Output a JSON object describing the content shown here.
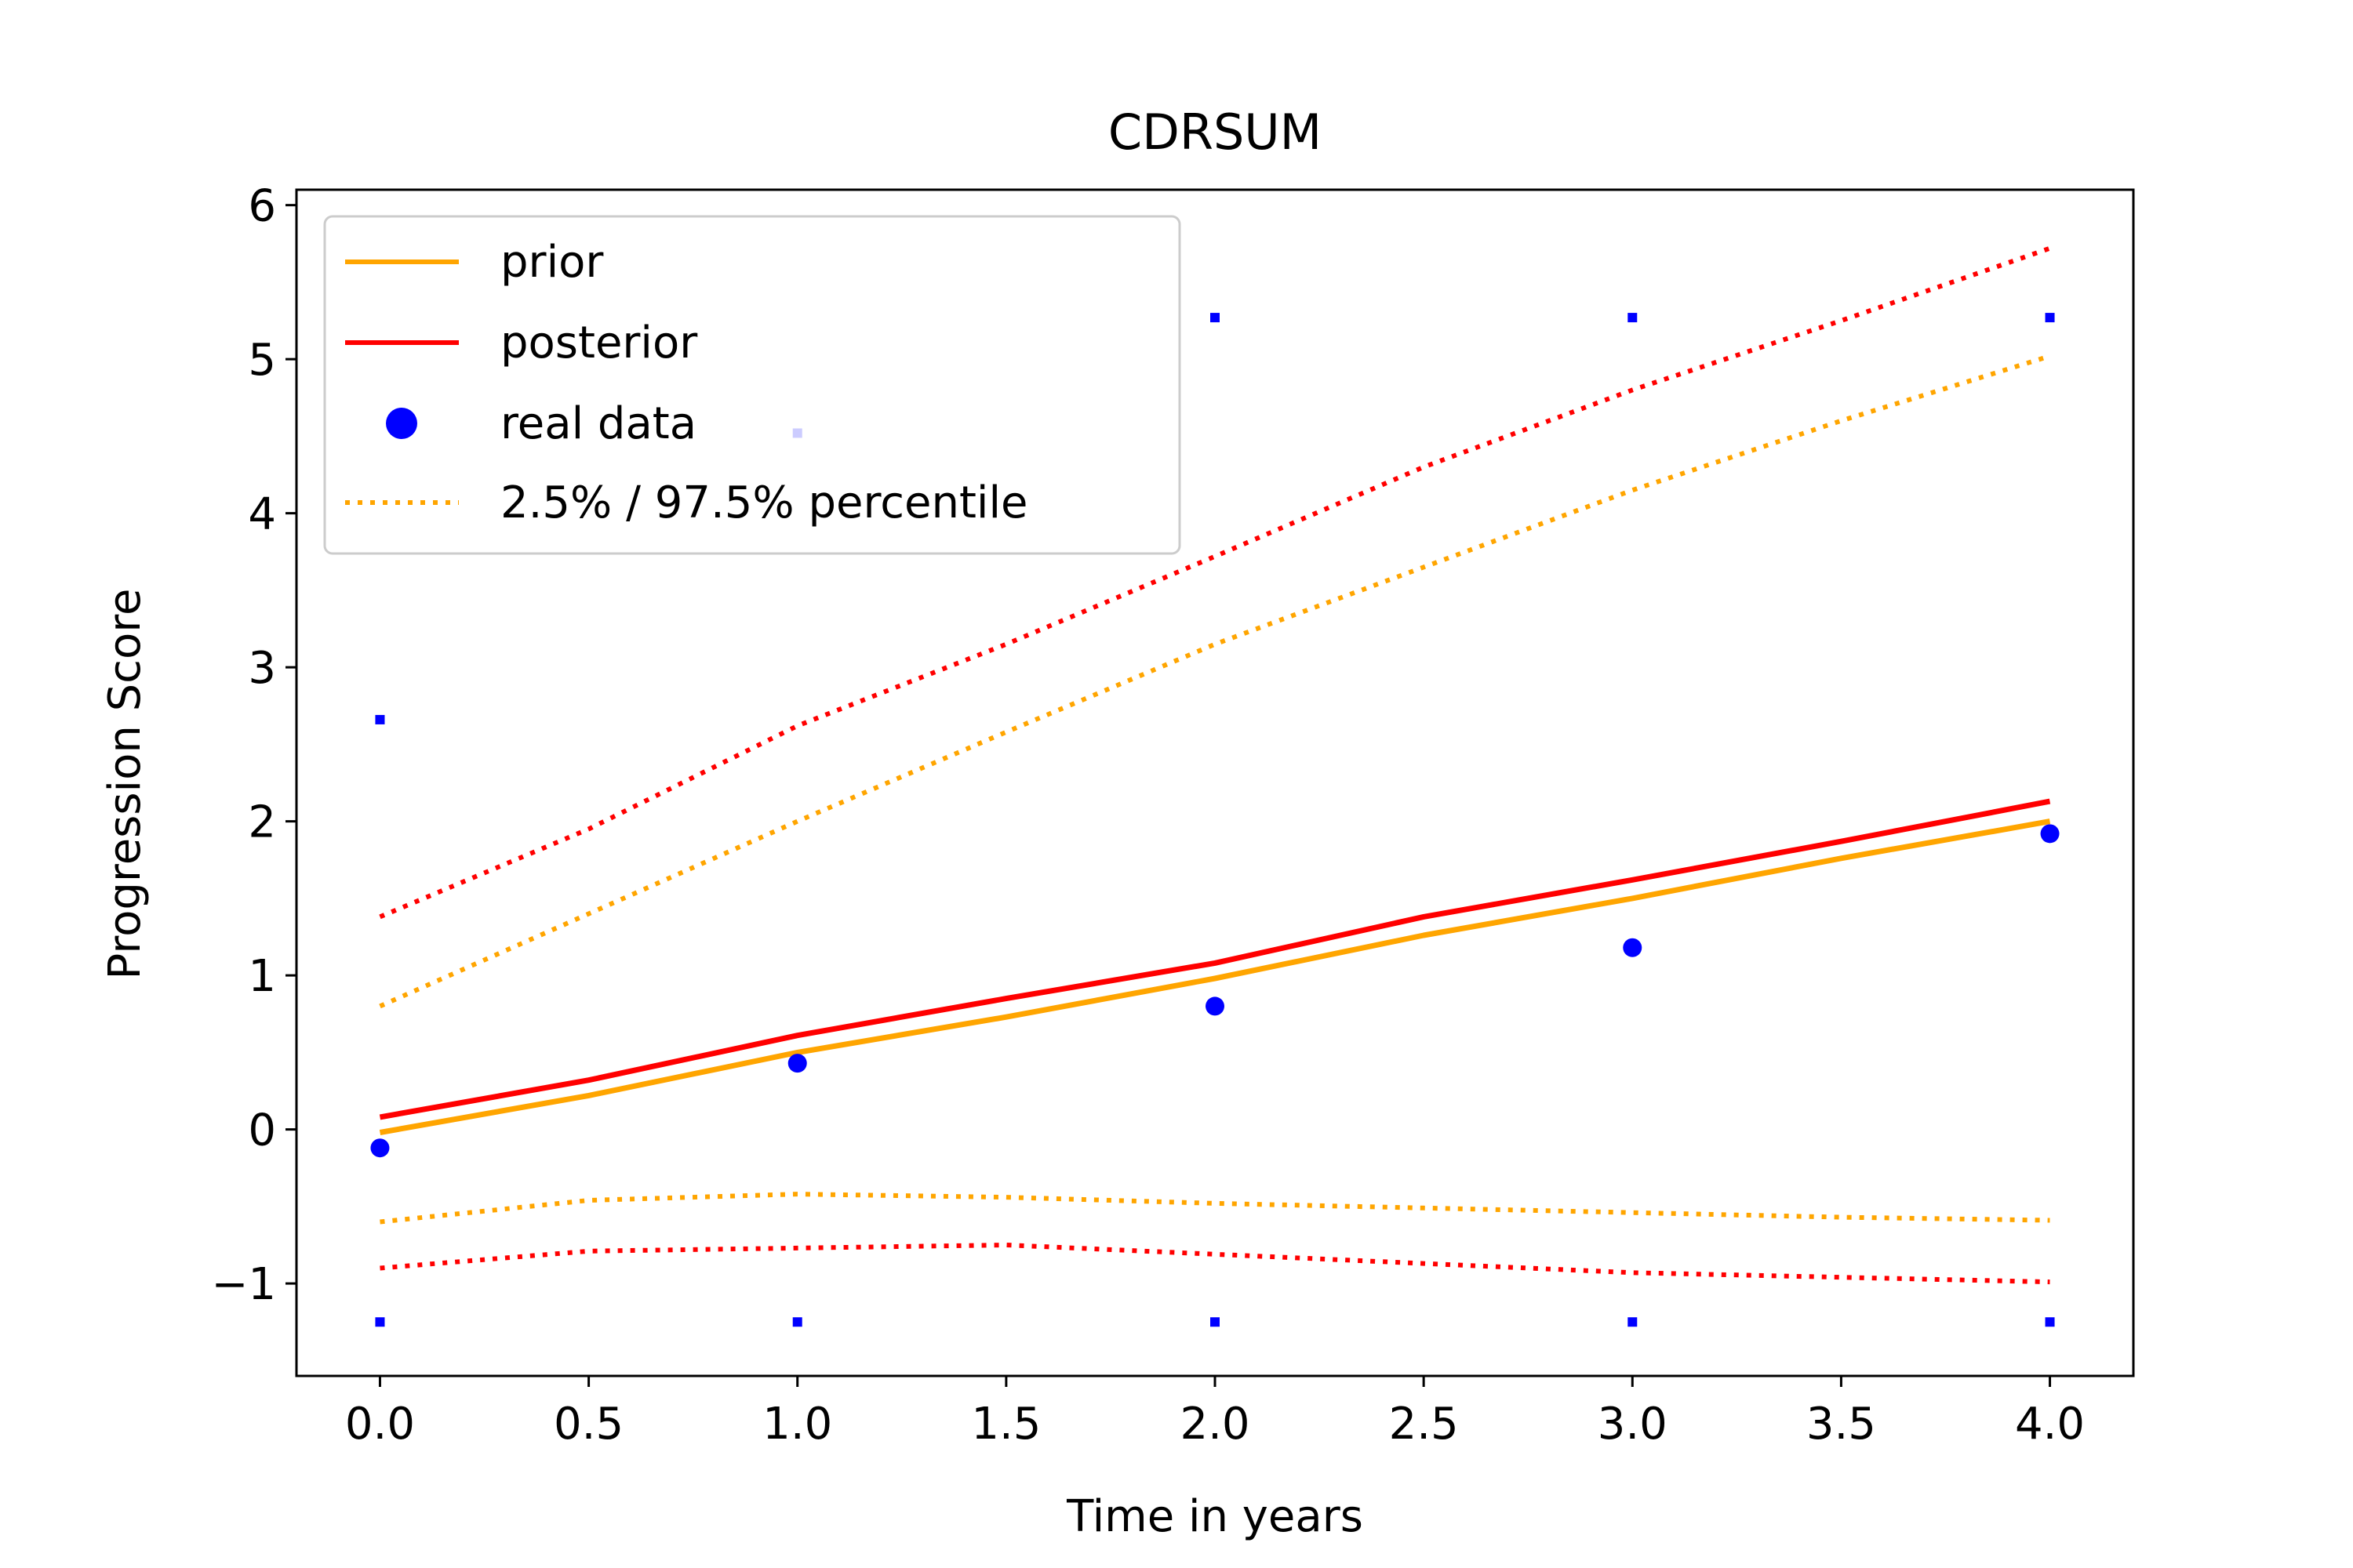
{
  "chart_data": {
    "type": "line",
    "title": "CDRSUM",
    "xlabel": "Time in years",
    "ylabel": "Progression Score",
    "xlim": [
      -0.2,
      4.2
    ],
    "ylim": [
      -1.6,
      6.1
    ],
    "xticks": [
      0.0,
      0.5,
      1.0,
      1.5,
      2.0,
      2.5,
      3.0,
      3.5,
      4.0
    ],
    "xtick_labels": [
      "0.0",
      "0.5",
      "1.0",
      "1.5",
      "2.0",
      "2.5",
      "3.0",
      "3.5",
      "4.0"
    ],
    "yticks": [
      -1,
      0,
      1,
      2,
      3,
      4,
      5,
      6
    ],
    "ytick_labels": [
      "−1",
      "0",
      "1",
      "2",
      "3",
      "4",
      "5",
      "6"
    ],
    "grid": false,
    "legend_position": "top-left",
    "legend": [
      "prior",
      "posterior",
      "real data",
      "2.5% / 97.5% percentile"
    ],
    "series": [
      {
        "name": "prior",
        "style": "solid",
        "color": "#FFA500",
        "x": [
          0,
          0.5,
          1.0,
          1.5,
          2.0,
          2.5,
          3.0,
          3.5,
          4.0
        ],
        "y": [
          -0.02,
          0.22,
          0.5,
          0.73,
          0.98,
          1.26,
          1.5,
          1.76,
          2.0
        ]
      },
      {
        "name": "posterior",
        "style": "solid",
        "color": "#FF0000",
        "x": [
          0,
          0.5,
          1.0,
          1.5,
          2.0,
          2.5,
          3.0,
          3.5,
          4.0
        ],
        "y": [
          0.08,
          0.32,
          0.61,
          0.85,
          1.08,
          1.38,
          1.62,
          1.87,
          2.13
        ]
      },
      {
        "name": "real data",
        "style": "marker",
        "color": "#0000FF",
        "x": [
          0,
          1,
          2,
          3,
          4
        ],
        "y": [
          -0.12,
          0.43,
          0.8,
          1.18,
          1.92
        ]
      },
      {
        "name": "2.5% / 97.5% percentile",
        "style": "dotted",
        "color": "#FFA500",
        "x": [
          0,
          0.5,
          1.0,
          1.5,
          2.0,
          2.5,
          3.0,
          3.5,
          4.0
        ],
        "y": [
          0.8,
          1.4,
          2.0,
          2.58,
          3.15,
          3.65,
          4.15,
          4.6,
          5.02
        ]
      },
      {
        "style": "dotted",
        "color": "#FFA500",
        "x": [
          0,
          0.5,
          1.0,
          1.5,
          2.0,
          2.5,
          3.0,
          3.5,
          4.0
        ],
        "y": [
          -0.6,
          -0.46,
          -0.42,
          -0.44,
          -0.48,
          -0.51,
          -0.54,
          -0.57,
          -0.59
        ]
      },
      {
        "style": "dotted",
        "color": "#FF0000",
        "x": [
          0,
          0.5,
          1.0,
          1.5,
          2.0,
          2.5,
          3.0,
          3.5,
          4.0
        ],
        "y": [
          1.38,
          1.95,
          2.62,
          3.15,
          3.72,
          4.3,
          4.8,
          5.25,
          5.72
        ]
      },
      {
        "style": "dotted",
        "color": "#FF0000",
        "x": [
          0,
          0.5,
          1.0,
          1.5,
          2.0,
          2.5,
          3.0,
          3.5,
          4.0
        ],
        "y": [
          -0.9,
          -0.79,
          -0.77,
          -0.75,
          -0.81,
          -0.87,
          -0.93,
          -0.96,
          -0.99
        ]
      }
    ],
    "extra_markers": {
      "color": "#0000FF",
      "x": [
        0,
        0,
        1,
        1,
        2,
        2,
        3,
        3,
        4,
        4
      ],
      "y": [
        2.66,
        -1.25,
        4.52,
        -1.25,
        5.27,
        -1.25,
        5.27,
        -1.25,
        5.27,
        -1.25
      ]
    }
  }
}
